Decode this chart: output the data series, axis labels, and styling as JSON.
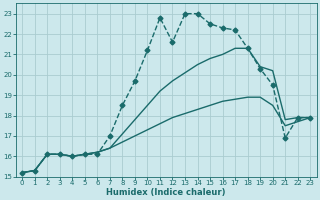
{
  "title": "",
  "xlabel": "Humidex (Indice chaleur)",
  "ylabel": "",
  "bg_color": "#cce8ec",
  "grid_color": "#aaccd0",
  "line_color": "#1a6b6b",
  "xlim": [
    -0.5,
    23.5
  ],
  "ylim": [
    15,
    23.5
  ],
  "xticks": [
    0,
    1,
    2,
    3,
    4,
    5,
    6,
    7,
    8,
    9,
    10,
    11,
    12,
    13,
    14,
    15,
    16,
    17,
    18,
    19,
    20,
    21,
    22,
    23
  ],
  "yticks": [
    15,
    16,
    17,
    18,
    19,
    20,
    21,
    22,
    23
  ],
  "series": [
    {
      "x": [
        0,
        1,
        2,
        3,
        4,
        5,
        6,
        7,
        8,
        9,
        10,
        11,
        12,
        13,
        14,
        15,
        16,
        17,
        18,
        19,
        20,
        21,
        22,
        23
      ],
      "y": [
        15.2,
        15.3,
        16.1,
        16.1,
        16.0,
        16.1,
        16.1,
        17.0,
        18.5,
        19.7,
        21.2,
        22.8,
        21.6,
        23.0,
        23.0,
        22.5,
        22.3,
        22.2,
        21.3,
        20.3,
        19.5,
        16.9,
        17.9,
        17.9
      ],
      "marker": "D",
      "markersize": 2.5,
      "linewidth": 1.0,
      "linestyle": "--"
    },
    {
      "x": [
        0,
        1,
        2,
        3,
        4,
        5,
        6,
        7,
        8,
        9,
        10,
        11,
        12,
        13,
        14,
        15,
        16,
        17,
        18,
        19,
        20,
        21,
        22,
        23
      ],
      "y": [
        15.2,
        15.3,
        16.1,
        16.1,
        16.0,
        16.1,
        16.2,
        16.4,
        17.1,
        17.8,
        18.5,
        19.2,
        19.7,
        20.1,
        20.5,
        20.8,
        21.0,
        21.3,
        21.3,
        20.4,
        20.2,
        17.8,
        17.9,
        17.9
      ],
      "marker": null,
      "markersize": 0,
      "linewidth": 1.0,
      "linestyle": "-"
    },
    {
      "x": [
        0,
        1,
        2,
        3,
        4,
        5,
        6,
        7,
        8,
        9,
        10,
        11,
        12,
        13,
        14,
        15,
        16,
        17,
        18,
        19,
        20,
        21,
        22,
        23
      ],
      "y": [
        15.2,
        15.3,
        16.1,
        16.1,
        16.0,
        16.1,
        16.2,
        16.4,
        16.7,
        17.0,
        17.3,
        17.6,
        17.9,
        18.1,
        18.3,
        18.5,
        18.7,
        18.8,
        18.9,
        18.9,
        18.5,
        17.5,
        17.7,
        17.9
      ],
      "marker": null,
      "markersize": 0,
      "linewidth": 1.0,
      "linestyle": "-"
    }
  ],
  "xlabel_fontsize": 6.0,
  "tick_fontsize": 5.0
}
